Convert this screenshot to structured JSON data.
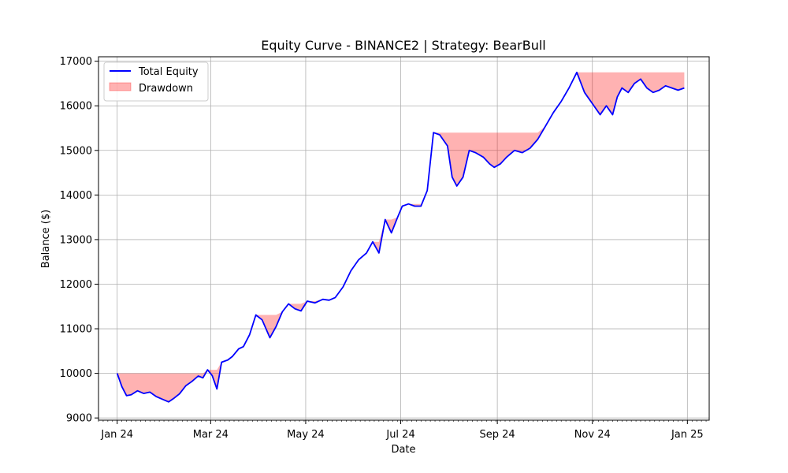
{
  "chart_data": {
    "type": "line",
    "title": "Equity Curve - BINANCE2 | Strategy: BearBull",
    "xlabel": "Date",
    "ylabel": "Balance ($)",
    "x_range": [
      "2023-12-20",
      "2025-01-15"
    ],
    "ylim": [
      8950,
      17100
    ],
    "grid": true,
    "legend_position": "top-left",
    "x_ticks": [
      {
        "date": "2024-01-01",
        "label": "Jan 24"
      },
      {
        "date": "2024-03-01",
        "label": "Mar 24"
      },
      {
        "date": "2024-05-01",
        "label": "May 24"
      },
      {
        "date": "2024-07-01",
        "label": "Jul 24"
      },
      {
        "date": "2024-09-01",
        "label": "Sep 24"
      },
      {
        "date": "2024-11-01",
        "label": "Nov 24"
      },
      {
        "date": "2025-01-01",
        "label": "Jan 25"
      }
    ],
    "y_ticks": [
      9000,
      10000,
      11000,
      12000,
      13000,
      14000,
      15000,
      16000,
      17000
    ],
    "series": [
      {
        "name": "Total Equity",
        "color": "#0000ff",
        "x": [
          "2024-01-01",
          "2024-01-04",
          "2024-01-07",
          "2024-01-10",
          "2024-01-14",
          "2024-01-18",
          "2024-01-22",
          "2024-01-26",
          "2024-01-30",
          "2024-02-03",
          "2024-02-06",
          "2024-02-10",
          "2024-02-14",
          "2024-02-18",
          "2024-02-22",
          "2024-02-25",
          "2024-02-28",
          "2024-03-02",
          "2024-03-05",
          "2024-03-08",
          "2024-03-12",
          "2024-03-15",
          "2024-03-19",
          "2024-03-22",
          "2024-03-26",
          "2024-03-30",
          "2024-04-03",
          "2024-04-08",
          "2024-04-12",
          "2024-04-16",
          "2024-04-20",
          "2024-04-24",
          "2024-04-28",
          "2024-05-02",
          "2024-05-07",
          "2024-05-12",
          "2024-05-16",
          "2024-05-20",
          "2024-05-25",
          "2024-05-30",
          "2024-06-04",
          "2024-06-09",
          "2024-06-13",
          "2024-06-17",
          "2024-06-21",
          "2024-06-25",
          "2024-06-29",
          "2024-07-02",
          "2024-07-06",
          "2024-07-10",
          "2024-07-14",
          "2024-07-18",
          "2024-07-22",
          "2024-07-26",
          "2024-07-31",
          "2024-08-03",
          "2024-08-06",
          "2024-08-10",
          "2024-08-14",
          "2024-08-18",
          "2024-08-23",
          "2024-08-27",
          "2024-08-30",
          "2024-09-03",
          "2024-09-07",
          "2024-09-12",
          "2024-09-17",
          "2024-09-22",
          "2024-09-27",
          "2024-10-02",
          "2024-10-07",
          "2024-10-12",
          "2024-10-17",
          "2024-10-22",
          "2024-10-27",
          "2024-11-01",
          "2024-11-06",
          "2024-11-10",
          "2024-11-14",
          "2024-11-17",
          "2024-11-20",
          "2024-11-24",
          "2024-11-28",
          "2024-12-02",
          "2024-12-06",
          "2024-12-10",
          "2024-12-14",
          "2024-12-18",
          "2024-12-22",
          "2024-12-26",
          "2024-12-30"
        ],
        "values": [
          10000,
          9700,
          9500,
          9520,
          9610,
          9550,
          9580,
          9480,
          9420,
          9360,
          9430,
          9540,
          9720,
          9820,
          9940,
          9900,
          10080,
          9950,
          9650,
          10250,
          10300,
          10380,
          10550,
          10600,
          10870,
          11310,
          11200,
          10800,
          11050,
          11380,
          11560,
          11450,
          11400,
          11620,
          11580,
          11660,
          11640,
          11700,
          11940,
          12300,
          12550,
          12700,
          12950,
          12700,
          13450,
          13150,
          13500,
          13750,
          13800,
          13750,
          13750,
          14100,
          15400,
          15350,
          15100,
          14400,
          14200,
          14400,
          15000,
          14950,
          14850,
          14700,
          14620,
          14700,
          14850,
          15000,
          14950,
          15050,
          15250,
          15550,
          15850,
          16100,
          16400,
          16750,
          16300,
          16050,
          15800,
          16000,
          15800,
          16200,
          16400,
          16300,
          16500,
          16600,
          16400,
          16300,
          16350,
          16450,
          16400,
          16350,
          16400
        ]
      },
      {
        "name": "Drawdown",
        "color": "#ff0000",
        "fill_opacity": 0.3,
        "values": [
          10000,
          10000,
          10000,
          10000,
          10000,
          10000,
          10000,
          10000,
          10000,
          10000,
          10000,
          10000,
          10000,
          10000,
          10000,
          10000,
          10080,
          10080,
          10080,
          10250,
          10300,
          10380,
          10550,
          10600,
          10870,
          11310,
          11310,
          11310,
          11310,
          11380,
          11560,
          11560,
          11560,
          11620,
          11620,
          11660,
          11660,
          11700,
          11940,
          12300,
          12550,
          12700,
          12950,
          12950,
          13450,
          13450,
          13500,
          13750,
          13800,
          13800,
          13800,
          14100,
          15400,
          15400,
          15400,
          15400,
          15400,
          15400,
          15400,
          15400,
          15400,
          15400,
          15400,
          15400,
          15400,
          15400,
          15400,
          15400,
          15400,
          15550,
          15850,
          16100,
          16400,
          16750,
          16750,
          16750,
          16750,
          16750,
          16750,
          16750,
          16750,
          16750,
          16750,
          16750,
          16750,
          16750,
          16750,
          16750,
          16750,
          16750,
          16750
        ]
      }
    ]
  }
}
